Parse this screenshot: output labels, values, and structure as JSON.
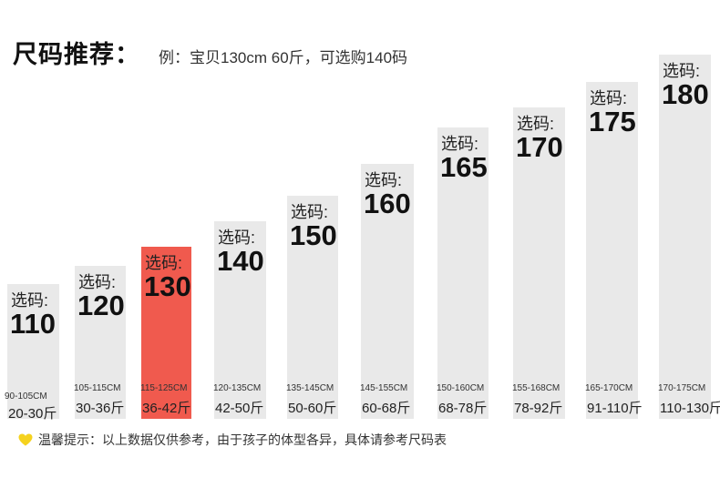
{
  "header": {
    "title": "尺码推荐：",
    "example": "例：宝贝130cm 60斤，可选购140码"
  },
  "pick_label": "选码:",
  "columns": [
    {
      "size": "110",
      "height_range": "90-105CM",
      "weight_range": "20-30斤",
      "highlight": false
    },
    {
      "size": "120",
      "height_range": "105-115CM",
      "weight_range": "30-36斤",
      "highlight": false
    },
    {
      "size": "130",
      "height_range": "115-125CM",
      "weight_range": "36-42斤",
      "highlight": true
    },
    {
      "size": "140",
      "height_range": "120-135CM",
      "weight_range": "42-50斤",
      "highlight": false
    },
    {
      "size": "150",
      "height_range": "135-145CM",
      "weight_range": "50-60斤",
      "highlight": false
    },
    {
      "size": "160",
      "height_range": "145-155CM",
      "weight_range": "60-68斤",
      "highlight": false
    },
    {
      "size": "165",
      "height_range": "150-160CM",
      "weight_range": "68-78斤",
      "highlight": false
    },
    {
      "size": "170",
      "height_range": "155-168CM",
      "weight_range": "78-92斤",
      "highlight": false
    },
    {
      "size": "175",
      "height_range": "165-170CM",
      "weight_range": "91-110斤",
      "highlight": false
    },
    {
      "size": "180",
      "height_range": "170-175CM",
      "weight_range": "110-130斤",
      "highlight": false
    }
  ],
  "tip": {
    "icon": "heart-icon",
    "text": "温馨提示：以上数据仅供参考，由于孩子的体型各异，具体请参考尺码表"
  },
  "colors": {
    "bar": "#e9e9e9",
    "highlight_bar": "#f05a4e",
    "heart": "#f5d21e"
  }
}
